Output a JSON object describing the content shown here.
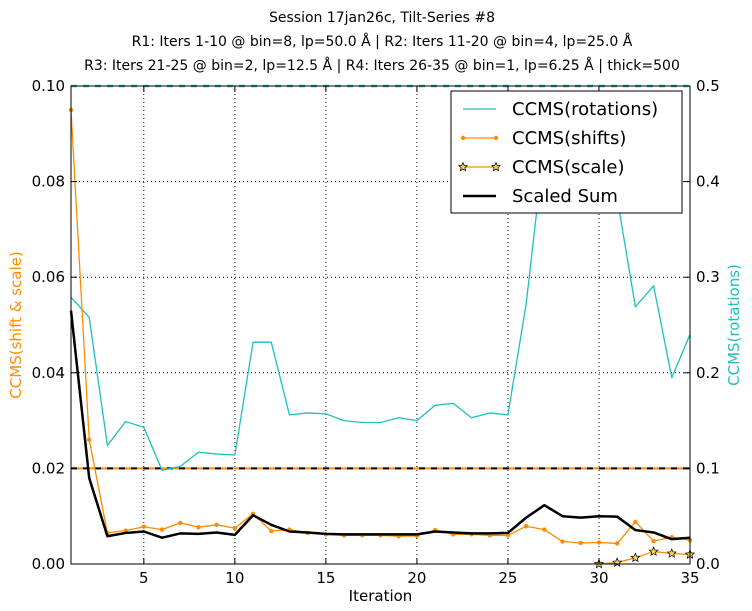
{
  "chart_data": {
    "type": "line",
    "title_lines": [
      "Session 17jan26c, Tilt-Series #8",
      "R1: Iters 1-10 @ bin=8, lp=50.0 Å | R2: Iters 11-20 @ bin=4, lp=25.0 Å",
      "R3: Iters 21-25 @ bin=2, lp=12.5 Å | R4: Iters 26-35 @ bin=1, lp=6.25 Å | thick=500"
    ],
    "xlabel": "Iteration",
    "ylabel_left": "CCMS(shift & scale)",
    "ylabel_right": "CCMS(rotations)",
    "xlim": [
      1,
      35
    ],
    "ylim_left": [
      0,
      0.1
    ],
    "ylim_right": [
      0,
      0.5
    ],
    "x_ticks": [
      5,
      10,
      15,
      20,
      25,
      30,
      35
    ],
    "y_ticks_left": [
      "0.00",
      "0.02",
      "0.04",
      "0.06",
      "0.08",
      "0.10"
    ],
    "y_ticks_right": [
      "0.0",
      "0.1",
      "0.2",
      "0.3",
      "0.4",
      "0.5"
    ],
    "grid": true,
    "legend_position": "top-right",
    "colors": {
      "rotations": "#1fbfbf",
      "shifts": "#ff8c00",
      "scale": "#ff8c00",
      "sum": "#000000",
      "left_axis": "#ff8c00",
      "right_axis": "#1fbfbf"
    },
    "reference_lines": [
      {
        "axis": "left",
        "value": 0.02,
        "style": "dashed",
        "colors": [
          "#ff8c00",
          "#000000"
        ]
      },
      {
        "axis": "right",
        "value": 0.5,
        "style": "dashed",
        "colors": [
          "#1fbfbf"
        ]
      }
    ],
    "series": [
      {
        "name": "CCMS(rotations)",
        "axis": "right",
        "style": "line",
        "x": [
          1,
          2,
          3,
          4,
          5,
          6,
          7,
          8,
          9,
          10,
          11,
          12,
          13,
          14,
          15,
          16,
          17,
          18,
          19,
          20,
          21,
          22,
          23,
          24,
          25,
          26,
          27,
          28,
          29,
          30,
          31,
          32,
          33,
          34,
          35
        ],
        "values": [
          0.279,
          0.258,
          0.124,
          0.149,
          0.143,
          0.098,
          0.102,
          0.117,
          0.115,
          0.114,
          0.232,
          0.232,
          0.156,
          0.158,
          0.157,
          0.15,
          0.148,
          0.148,
          0.153,
          0.15,
          0.166,
          0.168,
          0.153,
          0.158,
          0.156,
          0.272,
          0.439,
          0.386,
          0.369,
          0.384,
          0.383,
          0.269,
          0.291,
          0.195,
          0.24
        ]
      },
      {
        "name": "CCMS(shifts)",
        "axis": "left",
        "style": "line-dots",
        "x": [
          1,
          2,
          3,
          4,
          5,
          6,
          7,
          8,
          9,
          10,
          11,
          12,
          13,
          14,
          15,
          16,
          17,
          18,
          19,
          20,
          21,
          22,
          23,
          24,
          25,
          26,
          27,
          28,
          29,
          30,
          31,
          32,
          33,
          34,
          35
        ],
        "values": [
          0.095,
          0.026,
          0.0065,
          0.007,
          0.0078,
          0.0072,
          0.0086,
          0.0077,
          0.0082,
          0.0075,
          0.0105,
          0.0069,
          0.0072,
          0.0065,
          0.0062,
          0.006,
          0.006,
          0.006,
          0.0058,
          0.0059,
          0.0071,
          0.0062,
          0.0062,
          0.006,
          0.006,
          0.0079,
          0.0072,
          0.0047,
          0.0044,
          0.0045,
          0.0043,
          0.0088,
          0.0048,
          0.0056,
          0.005
        ]
      },
      {
        "name": "CCMS(scale)",
        "axis": "left",
        "style": "line-stars",
        "x": [
          30,
          31,
          32,
          33,
          34,
          35
        ],
        "values": [
          0.0,
          0.0003,
          0.0013,
          0.0026,
          0.0022,
          0.002
        ]
      },
      {
        "name": "Scaled Sum",
        "axis": "left",
        "style": "thick-line",
        "x": [
          1,
          2,
          3,
          4,
          5,
          6,
          7,
          8,
          9,
          10,
          11,
          12,
          13,
          14,
          15,
          16,
          17,
          18,
          19,
          20,
          21,
          22,
          23,
          24,
          25,
          26,
          27,
          28,
          29,
          30,
          31,
          32,
          33,
          34,
          35
        ],
        "values": [
          0.053,
          0.018,
          0.0058,
          0.0065,
          0.0068,
          0.0055,
          0.0064,
          0.0063,
          0.0066,
          0.0061,
          0.0102,
          0.0082,
          0.0068,
          0.0066,
          0.0063,
          0.0062,
          0.0062,
          0.0062,
          0.0062,
          0.0062,
          0.0068,
          0.0066,
          0.0064,
          0.0064,
          0.0065,
          0.0097,
          0.0123,
          0.01,
          0.0097,
          0.01,
          0.0099,
          0.0071,
          0.0066,
          0.0052,
          0.0055
        ]
      }
    ]
  }
}
